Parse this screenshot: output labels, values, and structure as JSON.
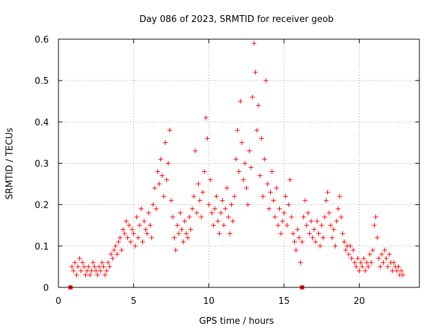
{
  "chart_data": {
    "type": "scatter",
    "title": "Day 086 of 2023, SRMTID for receiver geob",
    "xlabel": "GPS time / hours",
    "ylabel": "SRMTID / TECUs",
    "xlim": [
      0,
      24
    ],
    "ylim": [
      0,
      0.6
    ],
    "xticks": [
      0,
      5,
      10,
      15,
      20
    ],
    "yticks": [
      0,
      0.1,
      0.2,
      0.3,
      0.4,
      0.5,
      0.6
    ],
    "xtick_labels": [
      "0",
      "5",
      "10",
      "15",
      "20"
    ],
    "ytick_labels": [
      "0",
      "0.1",
      "0.2",
      "0.3",
      "0.4",
      "0.5",
      "0.6"
    ],
    "grid": true,
    "marker": "+",
    "color": "#ff0000",
    "gap_markers": [
      {
        "x": 0.8,
        "y": 0.0
      },
      {
        "x": 16.2,
        "y": 0.0
      }
    ],
    "series": [
      {
        "name": "SRMTID",
        "points": [
          [
            0.9,
            0.05
          ],
          [
            1.0,
            0.04
          ],
          [
            1.1,
            0.06
          ],
          [
            1.2,
            0.03
          ],
          [
            1.3,
            0.05
          ],
          [
            1.4,
            0.07
          ],
          [
            1.5,
            0.04
          ],
          [
            1.6,
            0.06
          ],
          [
            1.7,
            0.05
          ],
          [
            1.8,
            0.03
          ],
          [
            1.9,
            0.04
          ],
          [
            2.0,
            0.05
          ],
          [
            2.1,
            0.03
          ],
          [
            2.2,
            0.04
          ],
          [
            2.3,
            0.06
          ],
          [
            2.4,
            0.05
          ],
          [
            2.5,
            0.04
          ],
          [
            2.6,
            0.03
          ],
          [
            2.7,
            0.05
          ],
          [
            2.8,
            0.04
          ],
          [
            2.9,
            0.06
          ],
          [
            3.0,
            0.05
          ],
          [
            3.1,
            0.03
          ],
          [
            3.2,
            0.04
          ],
          [
            3.3,
            0.06
          ],
          [
            3.4,
            0.05
          ],
          [
            3.5,
            0.08
          ],
          [
            3.6,
            0.07
          ],
          [
            3.7,
            0.09
          ],
          [
            3.8,
            0.1
          ],
          [
            3.9,
            0.08
          ],
          [
            4.0,
            0.11
          ],
          [
            4.1,
            0.12
          ],
          [
            4.2,
            0.09
          ],
          [
            4.3,
            0.14
          ],
          [
            4.4,
            0.13
          ],
          [
            4.5,
            0.16
          ],
          [
            4.6,
            0.12
          ],
          [
            4.7,
            0.15
          ],
          [
            4.8,
            0.11
          ],
          [
            4.9,
            0.14
          ],
          [
            5.0,
            0.13
          ],
          [
            5.1,
            0.1
          ],
          [
            5.2,
            0.17
          ],
          [
            5.3,
            0.12
          ],
          [
            5.4,
            0.15
          ],
          [
            5.5,
            0.19
          ],
          [
            5.6,
            0.11
          ],
          [
            5.7,
            0.16
          ],
          [
            5.8,
            0.14
          ],
          [
            5.9,
            0.13
          ],
          [
            6.0,
            0.18
          ],
          [
            6.1,
            0.15
          ],
          [
            6.2,
            0.12
          ],
          [
            6.3,
            0.2
          ],
          [
            6.4,
            0.24
          ],
          [
            6.5,
            0.19
          ],
          [
            6.6,
            0.28
          ],
          [
            6.7,
            0.25
          ],
          [
            6.8,
            0.31
          ],
          [
            6.9,
            0.27
          ],
          [
            7.0,
            0.22
          ],
          [
            7.1,
            0.35
          ],
          [
            7.2,
            0.26
          ],
          [
            7.3,
            0.3
          ],
          [
            7.4,
            0.38
          ],
          [
            7.5,
            0.21
          ],
          [
            7.6,
            0.17
          ],
          [
            7.7,
            0.12
          ],
          [
            7.8,
            0.09
          ],
          [
            7.9,
            0.15
          ],
          [
            8.0,
            0.13
          ],
          [
            8.1,
            0.18
          ],
          [
            8.2,
            0.14
          ],
          [
            8.3,
            0.11
          ],
          [
            8.4,
            0.16
          ],
          [
            8.5,
            0.13
          ],
          [
            8.6,
            0.12
          ],
          [
            8.7,
            0.17
          ],
          [
            8.8,
            0.14
          ],
          [
            8.9,
            0.19
          ],
          [
            9.0,
            0.22
          ],
          [
            9.1,
            0.33
          ],
          [
            9.2,
            0.18
          ],
          [
            9.3,
            0.25
          ],
          [
            9.4,
            0.21
          ],
          [
            9.5,
            0.17
          ],
          [
            9.6,
            0.23
          ],
          [
            9.7,
            0.28
          ],
          [
            9.8,
            0.41
          ],
          [
            9.9,
            0.36
          ],
          [
            10.0,
            0.2
          ],
          [
            10.1,
            0.26
          ],
          [
            10.2,
            0.18
          ],
          [
            10.3,
            0.15
          ],
          [
            10.4,
            0.19
          ],
          [
            10.5,
            0.22
          ],
          [
            10.6,
            0.16
          ],
          [
            10.7,
            0.13
          ],
          [
            10.8,
            0.18
          ],
          [
            10.9,
            0.21
          ],
          [
            11.0,
            0.15
          ],
          [
            11.1,
            0.19
          ],
          [
            11.2,
            0.24
          ],
          [
            11.3,
            0.17
          ],
          [
            11.4,
            0.13
          ],
          [
            11.5,
            0.2
          ],
          [
            11.6,
            0.16
          ],
          [
            11.7,
            0.22
          ],
          [
            11.8,
            0.31
          ],
          [
            11.9,
            0.38
          ],
          [
            12.0,
            0.28
          ],
          [
            12.1,
            0.45
          ],
          [
            12.2,
            0.35
          ],
          [
            12.3,
            0.26
          ],
          [
            12.4,
            0.3
          ],
          [
            12.5,
            0.24
          ],
          [
            12.6,
            0.2
          ],
          [
            12.7,
            0.33
          ],
          [
            12.8,
            0.29
          ],
          [
            12.9,
            0.46
          ],
          [
            13.0,
            0.59
          ],
          [
            13.1,
            0.52
          ],
          [
            13.2,
            0.38
          ],
          [
            13.3,
            0.44
          ],
          [
            13.4,
            0.27
          ],
          [
            13.5,
            0.36
          ],
          [
            13.6,
            0.22
          ],
          [
            13.7,
            0.31
          ],
          [
            13.8,
            0.5
          ],
          [
            13.9,
            0.25
          ],
          [
            14.0,
            0.19
          ],
          [
            14.1,
            0.23
          ],
          [
            14.2,
            0.28
          ],
          [
            14.3,
            0.21
          ],
          [
            14.4,
            0.17
          ],
          [
            14.5,
            0.24
          ],
          [
            14.6,
            0.15
          ],
          [
            14.7,
            0.19
          ],
          [
            14.8,
            0.13
          ],
          [
            14.9,
            0.16
          ],
          [
            15.0,
            0.18
          ],
          [
            15.1,
            0.22
          ],
          [
            15.2,
            0.15
          ],
          [
            15.3,
            0.2
          ],
          [
            15.4,
            0.26
          ],
          [
            15.5,
            0.17
          ],
          [
            15.6,
            0.13
          ],
          [
            15.7,
            0.11
          ],
          [
            15.8,
            0.09
          ],
          [
            15.9,
            0.14
          ],
          [
            16.0,
            0.12
          ],
          [
            16.1,
            0.06
          ],
          [
            16.2,
            0.11
          ],
          [
            16.3,
            0.17
          ],
          [
            16.4,
            0.21
          ],
          [
            16.5,
            0.15
          ],
          [
            16.6,
            0.18
          ],
          [
            16.7,
            0.13
          ],
          [
            16.8,
            0.16
          ],
          [
            16.9,
            0.12
          ],
          [
            17.0,
            0.14
          ],
          [
            17.1,
            0.11
          ],
          [
            17.2,
            0.16
          ],
          [
            17.3,
            0.13
          ],
          [
            17.4,
            0.1
          ],
          [
            17.5,
            0.15
          ],
          [
            17.6,
            0.12
          ],
          [
            17.7,
            0.17
          ],
          [
            17.8,
            0.21
          ],
          [
            17.9,
            0.23
          ],
          [
            18.0,
            0.18
          ],
          [
            18.1,
            0.15
          ],
          [
            18.2,
            0.12
          ],
          [
            18.3,
            0.14
          ],
          [
            18.4,
            0.1
          ],
          [
            18.5,
            0.16
          ],
          [
            18.6,
            0.19
          ],
          [
            18.7,
            0.22
          ],
          [
            18.8,
            0.17
          ],
          [
            18.9,
            0.13
          ],
          [
            19.0,
            0.11
          ],
          [
            19.1,
            0.09
          ],
          [
            19.2,
            0.1
          ],
          [
            19.3,
            0.08
          ],
          [
            19.4,
            0.1
          ],
          [
            19.5,
            0.07
          ],
          [
            19.6,
            0.09
          ],
          [
            19.7,
            0.06
          ],
          [
            19.8,
            0.05
          ],
          [
            19.9,
            0.07
          ],
          [
            20.0,
            0.04
          ],
          [
            20.1,
            0.06
          ],
          [
            20.2,
            0.05
          ],
          [
            20.3,
            0.07
          ],
          [
            20.4,
            0.04
          ],
          [
            20.5,
            0.06
          ],
          [
            20.6,
            0.05
          ],
          [
            20.7,
            0.08
          ],
          [
            20.8,
            0.06
          ],
          [
            20.9,
            0.09
          ],
          [
            21.0,
            0.15
          ],
          [
            21.1,
            0.17
          ],
          [
            21.2,
            0.12
          ],
          [
            21.3,
            0.07
          ],
          [
            21.4,
            0.05
          ],
          [
            21.5,
            0.08
          ],
          [
            21.6,
            0.06
          ],
          [
            21.7,
            0.09
          ],
          [
            21.8,
            0.07
          ],
          [
            21.9,
            0.05
          ],
          [
            22.0,
            0.08
          ],
          [
            22.1,
            0.06
          ],
          [
            22.2,
            0.04
          ],
          [
            22.3,
            0.06
          ],
          [
            22.4,
            0.05
          ],
          [
            22.5,
            0.04
          ],
          [
            22.6,
            0.05
          ],
          [
            22.7,
            0.03
          ],
          [
            22.8,
            0.04
          ],
          [
            22.9,
            0.03
          ]
        ]
      }
    ]
  }
}
